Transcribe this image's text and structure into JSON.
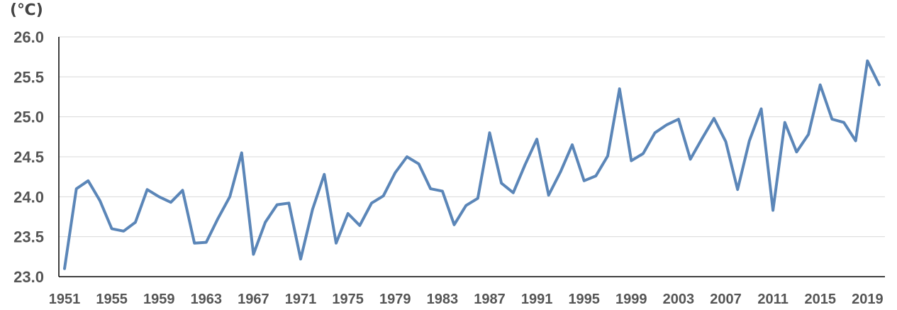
{
  "chart_data": {
    "type": "line",
    "unit_label": "(℃)",
    "ylim": [
      23.0,
      26.0
    ],
    "y_ticks": [
      "23.0",
      "23.5",
      "24.0",
      "24.5",
      "25.0",
      "25.5",
      "26.0"
    ],
    "x_tick_labels": [
      "1951",
      "1955",
      "1959",
      "1963",
      "1967",
      "1971",
      "1975",
      "1979",
      "1983",
      "1987",
      "1991",
      "1995",
      "1999",
      "2003",
      "2007",
      "2011",
      "2015",
      "2019"
    ],
    "grid": true,
    "legend": "none",
    "colors": {
      "line": "#5b86b8",
      "grid": "#d9d9d9",
      "axis": "#000000",
      "text": "#555555"
    },
    "x": [
      1951,
      1952,
      1953,
      1954,
      1955,
      1956,
      1957,
      1958,
      1959,
      1960,
      1961,
      1962,
      1963,
      1964,
      1965,
      1966,
      1967,
      1968,
      1969,
      1970,
      1971,
      1972,
      1973,
      1974,
      1975,
      1976,
      1977,
      1978,
      1979,
      1980,
      1981,
      1982,
      1983,
      1984,
      1985,
      1986,
      1987,
      1988,
      1989,
      1990,
      1991,
      1992,
      1993,
      1994,
      1995,
      1996,
      1997,
      1998,
      1999,
      2000,
      2001,
      2002,
      2003,
      2004,
      2005,
      2006,
      2007,
      2008,
      2009,
      2010,
      2011,
      2012,
      2013,
      2014,
      2015,
      2016,
      2017,
      2018,
      2019,
      2020
    ],
    "values": [
      23.1,
      24.1,
      24.2,
      23.95,
      23.6,
      23.57,
      23.68,
      24.09,
      24.0,
      23.93,
      24.08,
      23.42,
      23.43,
      23.73,
      24.0,
      24.55,
      23.28,
      23.68,
      23.9,
      23.92,
      23.22,
      23.84,
      24.28,
      23.42,
      23.79,
      23.64,
      23.92,
      24.01,
      24.3,
      24.5,
      24.41,
      24.1,
      24.07,
      23.65,
      23.89,
      23.98,
      24.8,
      24.17,
      24.05,
      24.4,
      24.72,
      24.02,
      24.31,
      24.65,
      24.2,
      24.26,
      24.51,
      25.35,
      24.45,
      24.54,
      24.8,
      24.9,
      24.97,
      24.47,
      24.73,
      24.98,
      24.69,
      24.09,
      24.7,
      25.1,
      23.83,
      24.93,
      24.56,
      24.78,
      25.4,
      24.97,
      24.93,
      24.7,
      25.7,
      25.4
    ]
  }
}
